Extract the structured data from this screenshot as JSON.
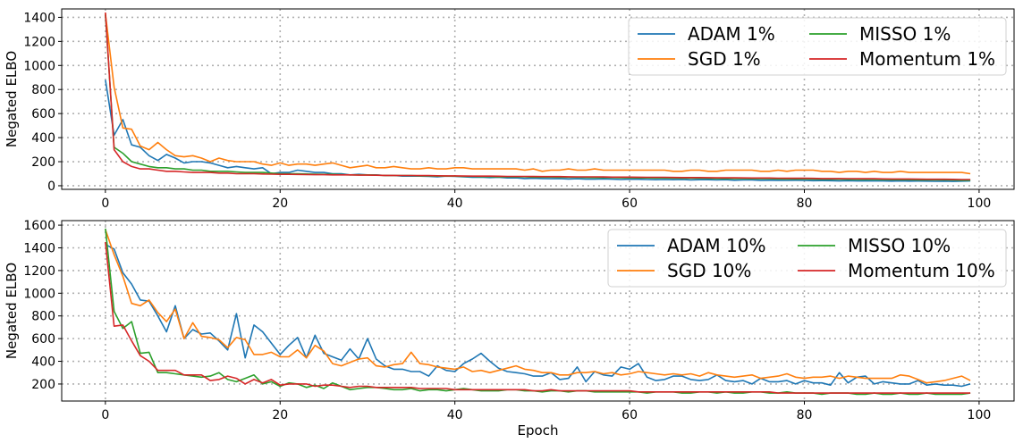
{
  "chart_data": [
    {
      "type": "line",
      "title": "",
      "xlabel": "",
      "ylabel": "Negated ELBO",
      "xlim": [
        -5,
        104
      ],
      "ylim": [
        -30,
        1470
      ],
      "xticks": [
        0,
        20,
        40,
        60,
        80,
        100
      ],
      "yticks": [
        0,
        200,
        400,
        600,
        800,
        1000,
        1200,
        1400
      ],
      "grid": true,
      "legend": "top-right",
      "legend_columns": 2,
      "series": [
        {
          "name": "ADAM 1%",
          "color": "#1f77b4",
          "x_start": 0,
          "values": [
            880,
            420,
            550,
            340,
            320,
            250,
            210,
            260,
            230,
            190,
            200,
            200,
            190,
            170,
            150,
            160,
            150,
            140,
            150,
            100,
            110,
            110,
            130,
            120,
            110,
            110,
            100,
            100,
            90,
            95,
            90,
            90,
            85,
            85,
            80,
            80,
            80,
            78,
            75,
            80,
            78,
            75,
            70,
            72,
            68,
            70,
            65,
            66,
            60,
            62,
            60,
            58,
            60,
            56,
            58,
            55,
            55,
            57,
            55,
            52,
            55,
            54,
            52,
            50,
            52,
            50,
            52,
            48,
            50,
            50,
            48,
            50,
            46,
            48,
            48,
            45,
            46,
            45,
            44,
            46,
            44,
            42,
            43,
            42,
            40,
            42,
            40,
            41,
            40,
            40,
            38,
            40,
            38,
            39,
            38,
            37,
            38,
            36,
            38,
            40
          ]
        },
        {
          "name": "SGD 1%",
          "color": "#ff7f0e",
          "x_start": 0,
          "values": [
            1430,
            820,
            480,
            470,
            330,
            300,
            360,
            300,
            250,
            240,
            250,
            230,
            200,
            230,
            210,
            200,
            200,
            200,
            180,
            170,
            190,
            170,
            180,
            180,
            170,
            180,
            190,
            170,
            150,
            160,
            170,
            150,
            150,
            160,
            150,
            140,
            140,
            150,
            140,
            140,
            150,
            150,
            140,
            140,
            140,
            140,
            140,
            140,
            130,
            140,
            120,
            130,
            130,
            140,
            130,
            130,
            140,
            130,
            130,
            130,
            130,
            130,
            130,
            130,
            130,
            120,
            120,
            130,
            130,
            120,
            120,
            130,
            130,
            130,
            130,
            120,
            120,
            130,
            120,
            130,
            130,
            130,
            120,
            120,
            110,
            120,
            120,
            110,
            120,
            110,
            110,
            120,
            110,
            110,
            110,
            110,
            110,
            110,
            110,
            100
          ]
        },
        {
          "name": "MISSO 1%",
          "color": "#2ca02c",
          "x_start": 0,
          "values": [
            1420,
            320,
            270,
            200,
            180,
            160,
            150,
            150,
            140,
            140,
            130,
            130,
            120,
            120,
            120,
            115,
            110,
            110,
            110,
            105,
            100,
            100,
            100,
            98,
            96,
            95,
            95,
            92,
            90,
            90,
            90,
            88,
            86,
            85,
            85,
            84,
            82,
            82,
            80,
            80,
            80,
            78,
            78,
            76,
            76,
            75,
            75,
            74,
            74,
            72,
            72,
            72,
            70,
            70,
            70,
            69,
            68,
            68,
            68,
            66,
            66,
            65,
            65,
            64,
            64,
            63,
            62,
            62,
            62,
            61,
            60,
            60,
            60,
            59,
            58,
            58,
            58,
            57,
            56,
            56,
            56,
            55,
            54,
            54,
            54,
            53,
            52,
            52,
            52,
            51,
            50,
            50,
            50,
            49,
            48,
            48,
            48,
            47,
            46,
            46
          ]
        },
        {
          "name": "Momentum 1%",
          "color": "#d62728",
          "x_start": 0,
          "values": [
            1440,
            300,
            200,
            160,
            140,
            140,
            130,
            120,
            120,
            115,
            110,
            110,
            110,
            105,
            105,
            100,
            100,
            100,
            98,
            96,
            95,
            95,
            94,
            93,
            92,
            92,
            90,
            90,
            90,
            88,
            88,
            87,
            86,
            86,
            85,
            85,
            84,
            84,
            83,
            82,
            82,
            81,
            80,
            80,
            80,
            79,
            78,
            78,
            78,
            77,
            76,
            76,
            76,
            75,
            74,
            74,
            74,
            73,
            72,
            72,
            72,
            71,
            70,
            70,
            70,
            69,
            68,
            68,
            68,
            67,
            66,
            66,
            66,
            65,
            64,
            64,
            64,
            63,
            62,
            62,
            62,
            61,
            60,
            60,
            60,
            59,
            58,
            58,
            58,
            57,
            56,
            56,
            56,
            55,
            54,
            54,
            54,
            53,
            52,
            52
          ]
        }
      ]
    },
    {
      "type": "line",
      "title": "",
      "xlabel": "Epoch",
      "ylabel": "Negated ELBO",
      "xlim": [
        -5,
        104
      ],
      "ylim": [
        50,
        1640
      ],
      "xticks": [
        0,
        20,
        40,
        60,
        80,
        100
      ],
      "yticks": [
        200,
        400,
        600,
        800,
        1000,
        1200,
        1400,
        1600
      ],
      "grid": true,
      "legend": "top-right",
      "legend_columns": 2,
      "series": [
        {
          "name": "ADAM 10%",
          "color": "#1f77b4",
          "x_start": 0,
          "values": [
            1430,
            1390,
            1180,
            1080,
            940,
            930,
            800,
            660,
            890,
            600,
            680,
            640,
            650,
            580,
            500,
            820,
            430,
            720,
            660,
            560,
            460,
            540,
            610,
            430,
            630,
            470,
            440,
            410,
            510,
            420,
            600,
            420,
            360,
            330,
            330,
            310,
            310,
            270,
            360,
            320,
            310,
            380,
            420,
            470,
            400,
            340,
            310,
            300,
            290,
            270,
            270,
            300,
            240,
            250,
            350,
            220,
            310,
            280,
            270,
            350,
            330,
            380,
            260,
            230,
            240,
            270,
            270,
            240,
            230,
            240,
            280,
            230,
            220,
            230,
            200,
            250,
            220,
            220,
            230,
            200,
            230,
            210,
            210,
            190,
            300,
            210,
            260,
            270,
            200,
            220,
            210,
            200,
            200,
            230,
            190,
            200,
            190,
            190,
            180,
            200
          ]
        },
        {
          "name": "SGD 10%",
          "color": "#ff7f0e",
          "x_start": 0,
          "values": [
            1560,
            1340,
            1150,
            910,
            890,
            940,
            830,
            750,
            860,
            600,
            740,
            620,
            610,
            590,
            520,
            610,
            590,
            460,
            460,
            480,
            440,
            440,
            500,
            430,
            540,
            490,
            380,
            360,
            390,
            420,
            430,
            360,
            350,
            370,
            380,
            480,
            380,
            370,
            350,
            340,
            330,
            350,
            310,
            320,
            300,
            320,
            340,
            360,
            330,
            320,
            300,
            300,
            280,
            280,
            300,
            300,
            310,
            290,
            300,
            280,
            290,
            310,
            300,
            290,
            280,
            290,
            280,
            290,
            270,
            300,
            280,
            270,
            260,
            270,
            280,
            250,
            260,
            270,
            290,
            260,
            250,
            260,
            260,
            270,
            250,
            270,
            260,
            250,
            250,
            250,
            250,
            280,
            270,
            240,
            210,
            220,
            230,
            250,
            270,
            230
          ]
        },
        {
          "name": "MISSO 10%",
          "color": "#2ca02c",
          "x_start": 0,
          "values": [
            1570,
            840,
            690,
            750,
            470,
            480,
            300,
            300,
            290,
            280,
            270,
            260,
            270,
            300,
            240,
            220,
            250,
            280,
            200,
            220,
            180,
            210,
            200,
            170,
            190,
            160,
            210,
            180,
            150,
            160,
            170,
            170,
            160,
            150,
            150,
            160,
            140,
            150,
            150,
            140,
            150,
            160,
            150,
            140,
            140,
            140,
            150,
            150,
            140,
            140,
            130,
            140,
            140,
            130,
            140,
            140,
            130,
            130,
            130,
            130,
            130,
            130,
            120,
            130,
            130,
            130,
            120,
            120,
            130,
            130,
            120,
            130,
            120,
            120,
            130,
            130,
            120,
            120,
            130,
            120,
            120,
            120,
            110,
            120,
            120,
            120,
            110,
            110,
            120,
            110,
            110,
            120,
            110,
            110,
            120,
            110,
            110,
            110,
            110,
            120
          ]
        },
        {
          "name": "Momentum 10%",
          "color": "#d62728",
          "x_start": 0,
          "values": [
            1450,
            710,
            720,
            580,
            450,
            400,
            320,
            320,
            320,
            280,
            280,
            280,
            230,
            240,
            270,
            250,
            200,
            240,
            210,
            240,
            190,
            200,
            200,
            200,
            180,
            190,
            190,
            180,
            170,
            180,
            180,
            170,
            170,
            170,
            170,
            170,
            160,
            160,
            160,
            160,
            150,
            150,
            150,
            150,
            150,
            150,
            150,
            150,
            150,
            140,
            140,
            150,
            140,
            140,
            140,
            140,
            140,
            140,
            140,
            140,
            140,
            130,
            130,
            130,
            130,
            130,
            130,
            130,
            130,
            130,
            130,
            130,
            130,
            130,
            130,
            130,
            130,
            120,
            120,
            120,
            120,
            120,
            120,
            120,
            120,
            120,
            120,
            120,
            120,
            120,
            120,
            120,
            120,
            120,
            120,
            120,
            120,
            120,
            120,
            120
          ]
        }
      ]
    }
  ]
}
